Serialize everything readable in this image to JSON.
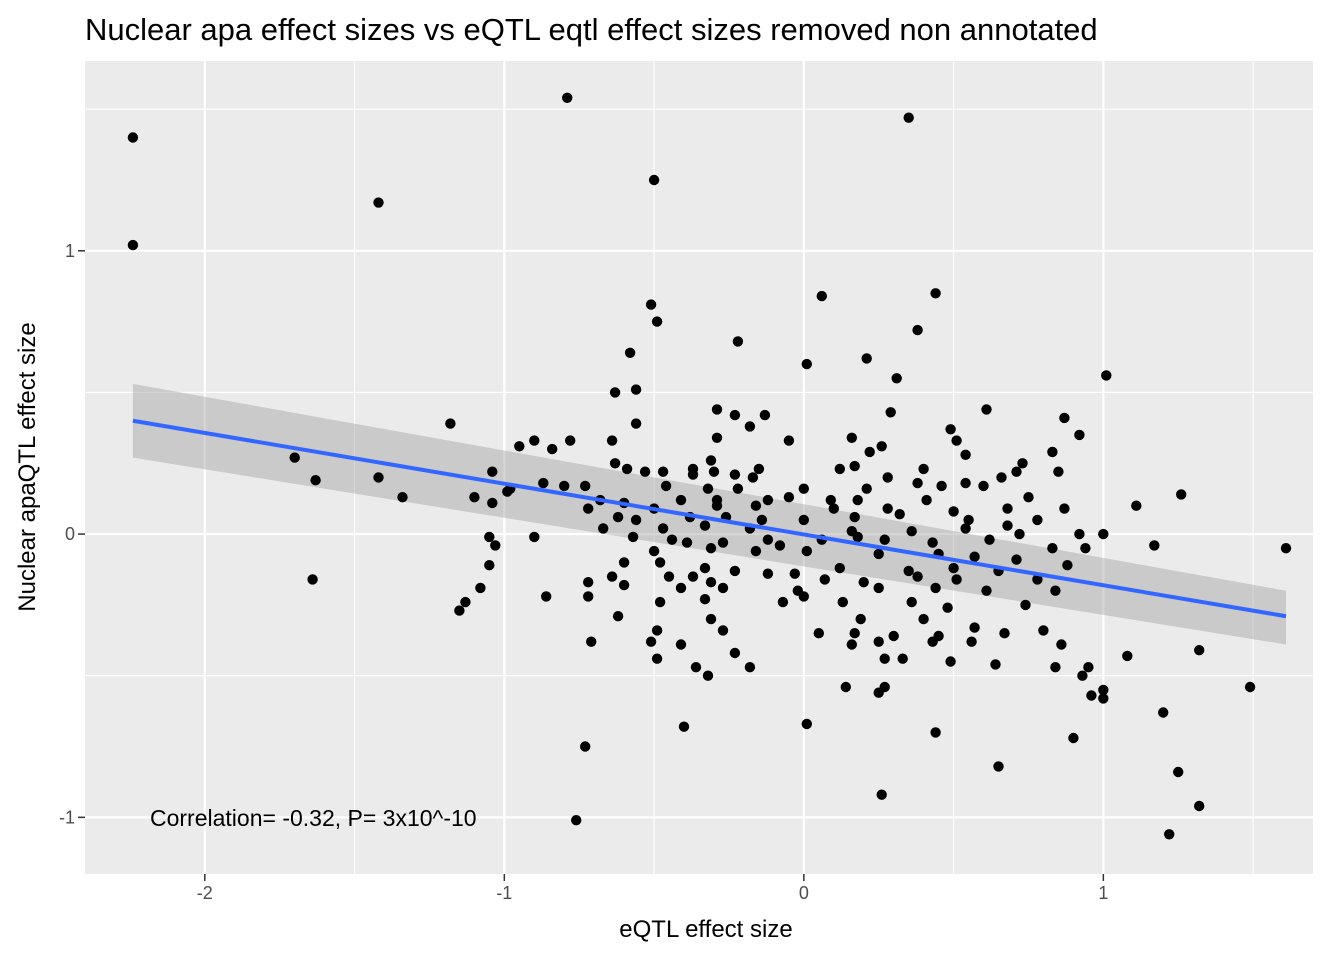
{
  "chart_data": {
    "type": "scatter",
    "title": "Nuclear apa effect sizes vs eQTL eqtl effect sizes removed non annotated",
    "xlabel": "eQTL effect size",
    "ylabel": "Nuclear apaQTL effect size",
    "xlim": [
      -2.4,
      1.7
    ],
    "ylim": [
      -1.2,
      1.67
    ],
    "xticks": [
      -2,
      -1,
      0,
      1
    ],
    "yticks": [
      -1,
      0,
      1
    ],
    "xtick_labels": [
      "-2",
      "-1",
      "0",
      "1"
    ],
    "ytick_labels": [
      "-1",
      "0",
      "1"
    ],
    "grid": true,
    "background": "#ebebeb",
    "point_color": "#000000",
    "fit_line": {
      "x": [
        -2.24,
        1.61
      ],
      "y": [
        0.4,
        -0.29
      ],
      "color": "#3366ff",
      "ci_lower": [
        0.27,
        -0.39
      ],
      "ci_upper": [
        0.53,
        -0.2
      ],
      "ci_color": "#999999"
    },
    "annotation": "Correlation= -0.32, P= 3x10^-10",
    "points": [
      [
        -2.24,
        1.4
      ],
      [
        -2.24,
        1.02
      ],
      [
        -0.79,
        1.54
      ],
      [
        0.35,
        1.47
      ],
      [
        -1.42,
        1.17
      ],
      [
        -0.5,
        1.25
      ],
      [
        0.44,
        0.85
      ],
      [
        0.06,
        0.84
      ],
      [
        -0.51,
        0.81
      ],
      [
        -0.49,
        0.75
      ],
      [
        0.38,
        0.72
      ],
      [
        -0.22,
        0.68
      ],
      [
        -0.58,
        0.64
      ],
      [
        0.21,
        0.62
      ],
      [
        0.01,
        0.6
      ],
      [
        1.01,
        0.56
      ],
      [
        0.31,
        0.55
      ],
      [
        -0.56,
        0.51
      ],
      [
        -0.63,
        0.5
      ],
      [
        0.61,
        0.44
      ],
      [
        -0.29,
        0.44
      ],
      [
        -0.23,
        0.42
      ],
      [
        -0.13,
        0.42
      ],
      [
        0.29,
        0.43
      ],
      [
        0.87,
        0.41
      ],
      [
        -1.18,
        0.39
      ],
      [
        -0.56,
        0.39
      ],
      [
        -0.18,
        0.38
      ],
      [
        0.49,
        0.37
      ],
      [
        0.92,
        0.35
      ],
      [
        -0.78,
        0.33
      ],
      [
        -0.64,
        0.33
      ],
      [
        -0.29,
        0.34
      ],
      [
        -0.05,
        0.33
      ],
      [
        0.16,
        0.34
      ],
      [
        0.51,
        0.33
      ],
      [
        -0.95,
        0.31
      ],
      [
        -0.9,
        0.33
      ],
      [
        0.26,
        0.31
      ],
      [
        0.22,
        0.29
      ],
      [
        -0.84,
        0.3
      ],
      [
        0.54,
        0.28
      ],
      [
        0.83,
        0.29
      ],
      [
        -1.7,
        0.27
      ],
      [
        -0.31,
        0.26
      ],
      [
        -0.63,
        0.25
      ],
      [
        0.73,
        0.25
      ],
      [
        -0.59,
        0.23
      ],
      [
        -0.53,
        0.22
      ],
      [
        -0.37,
        0.23
      ],
      [
        -0.3,
        0.22
      ],
      [
        -0.15,
        0.23
      ],
      [
        0.12,
        0.23
      ],
      [
        0.17,
        0.24
      ],
      [
        0.4,
        0.23
      ],
      [
        0.85,
        0.22
      ],
      [
        -1.63,
        0.19
      ],
      [
        -1.42,
        0.2
      ],
      [
        -1.04,
        0.22
      ],
      [
        -0.47,
        0.22
      ],
      [
        -0.37,
        0.21
      ],
      [
        -0.23,
        0.21
      ],
      [
        -0.17,
        0.2
      ],
      [
        0.28,
        0.2
      ],
      [
        0.38,
        0.18
      ],
      [
        0.66,
        0.2
      ],
      [
        0.71,
        0.22
      ],
      [
        -0.98,
        0.16
      ],
      [
        -0.87,
        0.18
      ],
      [
        -0.8,
        0.17
      ],
      [
        -0.73,
        0.17
      ],
      [
        -0.46,
        0.17
      ],
      [
        -0.32,
        0.16
      ],
      [
        -0.22,
        0.16
      ],
      [
        0.0,
        0.16
      ],
      [
        0.21,
        0.16
      ],
      [
        0.46,
        0.17
      ],
      [
        0.54,
        0.18
      ],
      [
        0.6,
        0.17
      ],
      [
        -1.34,
        0.13
      ],
      [
        -1.1,
        0.13
      ],
      [
        -0.99,
        0.15
      ],
      [
        -0.68,
        0.12
      ],
      [
        -0.6,
        0.11
      ],
      [
        -0.41,
        0.12
      ],
      [
        -0.29,
        0.12
      ],
      [
        -0.12,
        0.12
      ],
      [
        -0.05,
        0.13
      ],
      [
        0.09,
        0.12
      ],
      [
        0.18,
        0.12
      ],
      [
        0.41,
        0.12
      ],
      [
        0.75,
        0.13
      ],
      [
        1.26,
        0.14
      ],
      [
        1.11,
        0.1
      ],
      [
        -1.04,
        0.11
      ],
      [
        -0.72,
        0.09
      ],
      [
        -0.5,
        0.09
      ],
      [
        -0.29,
        0.1
      ],
      [
        -0.16,
        0.1
      ],
      [
        0.1,
        0.09
      ],
      [
        0.28,
        0.09
      ],
      [
        0.5,
        0.08
      ],
      [
        0.68,
        0.09
      ],
      [
        0.87,
        0.09
      ],
      [
        -0.62,
        0.06
      ],
      [
        -0.56,
        0.05
      ],
      [
        -0.38,
        0.06
      ],
      [
        -0.26,
        0.06
      ],
      [
        -0.14,
        0.05
      ],
      [
        0.0,
        0.05
      ],
      [
        0.17,
        0.06
      ],
      [
        0.32,
        0.07
      ],
      [
        0.55,
        0.05
      ],
      [
        0.68,
        0.03
      ],
      [
        0.78,
        0.05
      ],
      [
        -0.67,
        0.02
      ],
      [
        -0.47,
        0.02
      ],
      [
        -0.33,
        0.03
      ],
      [
        -0.18,
        0.02
      ],
      [
        0.16,
        0.01
      ],
      [
        0.36,
        0.01
      ],
      [
        0.54,
        0.02
      ],
      [
        0.72,
        0.0
      ],
      [
        0.92,
        0.0
      ],
      [
        1.0,
        0.0
      ],
      [
        -0.57,
        -0.01
      ],
      [
        -0.44,
        -0.02
      ],
      [
        -0.39,
        -0.03
      ],
      [
        -0.27,
        -0.03
      ],
      [
        -0.12,
        -0.02
      ],
      [
        -0.08,
        -0.04
      ],
      [
        0.06,
        -0.02
      ],
      [
        0.18,
        -0.01
      ],
      [
        0.27,
        -0.02
      ],
      [
        0.43,
        -0.03
      ],
      [
        0.62,
        -0.02
      ],
      [
        0.83,
        -0.05
      ],
      [
        0.94,
        -0.05
      ],
      [
        1.17,
        -0.04
      ],
      [
        1.61,
        -0.05
      ],
      [
        -1.05,
        -0.01
      ],
      [
        -0.9,
        -0.01
      ],
      [
        -1.03,
        -0.04
      ],
      [
        -0.5,
        -0.06
      ],
      [
        -0.31,
        -0.05
      ],
      [
        -0.16,
        -0.06
      ],
      [
        0.01,
        -0.06
      ],
      [
        0.25,
        -0.07
      ],
      [
        0.45,
        -0.07
      ],
      [
        0.57,
        -0.08
      ],
      [
        0.71,
        -0.09
      ],
      [
        -0.6,
        -0.1
      ],
      [
        -0.48,
        -0.1
      ],
      [
        -0.33,
        -0.12
      ],
      [
        -0.23,
        -0.13
      ],
      [
        -0.03,
        -0.14
      ],
      [
        0.12,
        -0.12
      ],
      [
        0.35,
        -0.13
      ],
      [
        0.5,
        -0.12
      ],
      [
        0.65,
        -0.13
      ],
      [
        0.88,
        -0.11
      ],
      [
        -1.05,
        -0.11
      ],
      [
        -0.64,
        -0.15
      ],
      [
        -0.45,
        -0.15
      ],
      [
        -0.37,
        -0.15
      ],
      [
        -0.31,
        -0.17
      ],
      [
        -0.12,
        -0.14
      ],
      [
        0.07,
        -0.16
      ],
      [
        0.2,
        -0.17
      ],
      [
        0.38,
        -0.15
      ],
      [
        0.51,
        -0.16
      ],
      [
        0.78,
        -0.16
      ],
      [
        -1.64,
        -0.16
      ],
      [
        -1.08,
        -0.19
      ],
      [
        -0.72,
        -0.17
      ],
      [
        -0.6,
        -0.18
      ],
      [
        -0.41,
        -0.19
      ],
      [
        -0.27,
        -0.19
      ],
      [
        -0.02,
        -0.2
      ],
      [
        0.25,
        -0.19
      ],
      [
        0.44,
        -0.19
      ],
      [
        0.61,
        -0.2
      ],
      [
        0.84,
        -0.2
      ],
      [
        -1.13,
        -0.24
      ],
      [
        -1.15,
        -0.27
      ],
      [
        -0.86,
        -0.22
      ],
      [
        -0.72,
        -0.22
      ],
      [
        -0.48,
        -0.24
      ],
      [
        -0.33,
        -0.23
      ],
      [
        -0.07,
        -0.24
      ],
      [
        0.0,
        -0.22
      ],
      [
        0.13,
        -0.24
      ],
      [
        0.36,
        -0.24
      ],
      [
        0.48,
        -0.26
      ],
      [
        0.74,
        -0.25
      ],
      [
        -0.62,
        -0.29
      ],
      [
        -0.31,
        -0.3
      ],
      [
        0.19,
        -0.3
      ],
      [
        0.4,
        -0.3
      ],
      [
        0.57,
        -0.33
      ],
      [
        0.8,
        -0.34
      ],
      [
        -0.49,
        -0.34
      ],
      [
        -0.27,
        -0.34
      ],
      [
        0.05,
        -0.35
      ],
      [
        0.17,
        -0.35
      ],
      [
        0.3,
        -0.36
      ],
      [
        0.45,
        -0.36
      ],
      [
        0.67,
        -0.35
      ],
      [
        -0.51,
        -0.38
      ],
      [
        -0.41,
        -0.39
      ],
      [
        0.16,
        -0.39
      ],
      [
        0.25,
        -0.38
      ],
      [
        0.43,
        -0.38
      ],
      [
        0.56,
        -0.38
      ],
      [
        -0.71,
        -0.38
      ],
      [
        0.86,
        -0.39
      ],
      [
        -0.49,
        -0.44
      ],
      [
        -0.23,
        -0.42
      ],
      [
        0.27,
        -0.44
      ],
      [
        0.33,
        -0.44
      ],
      [
        0.49,
        -0.45
      ],
      [
        0.64,
        -0.46
      ],
      [
        0.84,
        -0.47
      ],
      [
        0.95,
        -0.47
      ],
      [
        1.08,
        -0.43
      ],
      [
        1.32,
        -0.41
      ],
      [
        -0.36,
        -0.47
      ],
      [
        -0.18,
        -0.47
      ],
      [
        -0.32,
        -0.5
      ],
      [
        0.14,
        -0.54
      ],
      [
        0.27,
        -0.54
      ],
      [
        0.93,
        -0.5
      ],
      [
        1.0,
        -0.55
      ],
      [
        1.49,
        -0.54
      ],
      [
        0.25,
        -0.56
      ],
      [
        0.96,
        -0.57
      ],
      [
        1.0,
        -0.58
      ],
      [
        1.2,
        -0.63
      ],
      [
        0.01,
        -0.67
      ],
      [
        -0.4,
        -0.68
      ],
      [
        0.44,
        -0.7
      ],
      [
        0.9,
        -0.72
      ],
      [
        -0.73,
        -0.75
      ],
      [
        0.65,
        -0.82
      ],
      [
        1.25,
        -0.84
      ],
      [
        0.26,
        -0.92
      ],
      [
        1.32,
        -0.96
      ],
      [
        -0.76,
        -1.01
      ],
      [
        1.22,
        -1.06
      ]
    ]
  }
}
